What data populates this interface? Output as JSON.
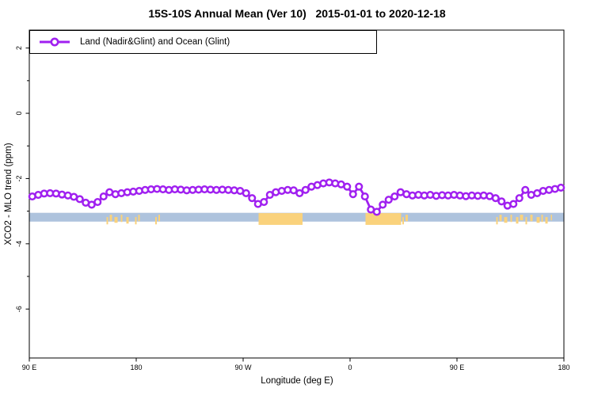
{
  "title": "15S-10S Annual Mean (Ver 10)   2015-01-01 to 2020-12-18",
  "legend": {
    "label": "Land (Nadir&Glint) and Ocean (Glint)",
    "marker": "open-circle-on-line",
    "color": "#A020F0"
  },
  "colors": {
    "series": "#A020F0",
    "marker_fill": "#ffffff",
    "ocean_band": "#AEC3DD",
    "land_band": "#FAD27C",
    "axis": "#000000"
  },
  "chart_data": {
    "type": "line",
    "title": "15S-10S Annual Mean (Ver 10)   2015-01-01 to 2020-12-18",
    "xlabel": "Longitude (deg E)",
    "ylabel": "XCO2 - MLO trend (ppm)",
    "xlim": [
      90,
      540
    ],
    "ylim": [
      -7.5,
      2.55
    ],
    "grid": false,
    "legend_position": "top-left",
    "x_ticks": [
      {
        "pos": 90,
        "label": "90 E"
      },
      {
        "pos": 180,
        "label": "180"
      },
      {
        "pos": 270,
        "label": "90 W"
      },
      {
        "pos": 360,
        "label": "0"
      },
      {
        "pos": 450,
        "label": "90 E"
      },
      {
        "pos": 540,
        "label": "180"
      }
    ],
    "y_ticks_major": [
      {
        "pos": 2,
        "label": "2"
      },
      {
        "pos": 0,
        "label": "0"
      },
      {
        "pos": -2,
        "label": "-2"
      },
      {
        "pos": -4,
        "label": "-4"
      },
      {
        "pos": -6,
        "label": "-6"
      }
    ],
    "y_ticks_minor": [
      1,
      -1,
      -3,
      -5
    ],
    "series": [
      {
        "name": "Land (Nadir&Glint) and Ocean (Glint)",
        "color": "#A020F0",
        "marker": "open-circle",
        "x": [
          92.5,
          97.5,
          102.5,
          107.5,
          112.5,
          117.5,
          122.5,
          127.5,
          132.5,
          137.5,
          142.5,
          147.5,
          152.5,
          157.5,
          162.5,
          167.5,
          172.5,
          177.5,
          182.5,
          187.5,
          192.5,
          197.5,
          202.5,
          207.5,
          212.5,
          217.5,
          222.5,
          227.5,
          232.5,
          237.5,
          242.5,
          247.5,
          252.5,
          257.5,
          262.5,
          267.5,
          272.5,
          277.5,
          282.5,
          287.5,
          292.5,
          297.5,
          302.5,
          307.5,
          312.5,
          317.5,
          322.5,
          327.5,
          332.5,
          337.5,
          342.5,
          347.5,
          352.5,
          357.5,
          362.5,
          367.5,
          372.5,
          377.5,
          382.5,
          387.5,
          392.5,
          397.5,
          402.5,
          407.5,
          412.5,
          417.5,
          422.5,
          427.5,
          432.5,
          437.5,
          442.5,
          447.5,
          452.5,
          457.5,
          462.5,
          467.5,
          472.5,
          477.5,
          482.5,
          487.5,
          492.5,
          497.5,
          502.5,
          507.5,
          512.5,
          517.5,
          522.5,
          527.5,
          532.5,
          537.5
        ],
        "y": [
          -2.55,
          -2.5,
          -2.46,
          -2.45,
          -2.46,
          -2.49,
          -2.52,
          -2.56,
          -2.63,
          -2.74,
          -2.8,
          -2.72,
          -2.55,
          -2.42,
          -2.48,
          -2.45,
          -2.42,
          -2.4,
          -2.38,
          -2.35,
          -2.33,
          -2.32,
          -2.33,
          -2.35,
          -2.33,
          -2.34,
          -2.36,
          -2.35,
          -2.34,
          -2.33,
          -2.34,
          -2.35,
          -2.34,
          -2.35,
          -2.36,
          -2.38,
          -2.45,
          -2.6,
          -2.78,
          -2.72,
          -2.5,
          -2.42,
          -2.38,
          -2.35,
          -2.36,
          -2.45,
          -2.35,
          -2.25,
          -2.2,
          -2.15,
          -2.12,
          -2.15,
          -2.18,
          -2.25,
          -2.48,
          -2.25,
          -2.55,
          -2.95,
          -3.02,
          -2.8,
          -2.65,
          -2.55,
          -2.42,
          -2.48,
          -2.52,
          -2.5,
          -2.52,
          -2.5,
          -2.53,
          -2.51,
          -2.52,
          -2.5,
          -2.52,
          -2.54,
          -2.52,
          -2.53,
          -2.52,
          -2.54,
          -2.6,
          -2.7,
          -2.83,
          -2.78,
          -2.6,
          -2.35,
          -2.5,
          -2.45,
          -2.38,
          -2.35,
          -2.32,
          -2.28
        ]
      }
    ],
    "surface_band": {
      "description": "land/ocean strip along latitude band",
      "ocean_color": "#AEC3DD",
      "land_color": "#FAD27C",
      "ocean_ppm_top": -3.05,
      "ocean_ppm_bottom": -3.32,
      "land_ppm_top": -3.06,
      "land_ppm_bottom": -3.42,
      "ocean": {
        "from": 90,
        "to": 540
      },
      "land_segments": [
        {
          "from": 155,
          "to": 174,
          "style": "speckle"
        },
        {
          "from": 179,
          "to": 183,
          "style": "speckle"
        },
        {
          "from": 196,
          "to": 200,
          "style": "speckle"
        },
        {
          "from": 283,
          "to": 320,
          "style": "solid"
        },
        {
          "from": 373,
          "to": 403,
          "style": "solid"
        },
        {
          "from": 404,
          "to": 410,
          "style": "speckle"
        },
        {
          "from": 483,
          "to": 530,
          "style": "speckle"
        }
      ]
    }
  }
}
